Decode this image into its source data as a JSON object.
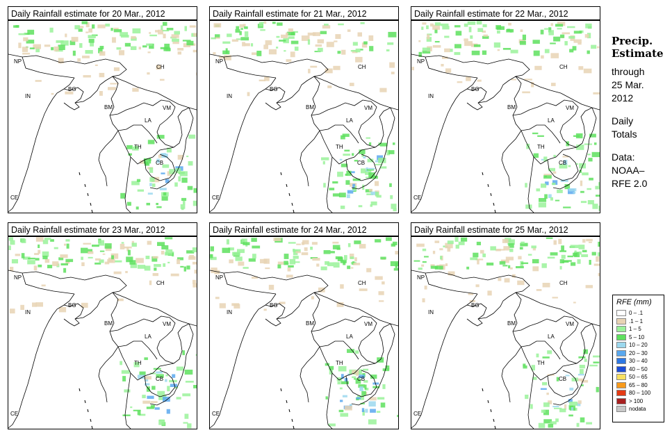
{
  "panels": [
    {
      "title": "Daily Rainfall estimate for  20 Mar., 2012",
      "seed": 1
    },
    {
      "title": "Daily Rainfall estimate for  21 Mar., 2012",
      "seed": 2
    },
    {
      "title": "Daily Rainfall estimate for  22 Mar., 2012",
      "seed": 3
    },
    {
      "title": "Daily Rainfall estimate for  23 Mar., 2012",
      "seed": 4
    },
    {
      "title": "Daily Rainfall estimate for  24 Mar., 2012",
      "seed": 5
    },
    {
      "title": "Daily Rainfall estimate for  25 Mar., 2012",
      "seed": 6
    }
  ],
  "country_labels": [
    "NP",
    "CH",
    "IN",
    "BG",
    "BM",
    "VM",
    "LA",
    "TH",
    "CB",
    "CE"
  ],
  "side": {
    "heading_line1": "Precip.",
    "heading_line2": "Estimate",
    "through": "through",
    "date_line1": "25 Mar.",
    "date_line2": "2012",
    "daily1": "Daily",
    "daily2": "Totals",
    "data1": "Data:",
    "data2": "NOAA–",
    "data3": "RFE 2.0"
  },
  "legend": {
    "title": "RFE (mm)",
    "items": [
      {
        "label": "0 – .1",
        "color": "#ffffff"
      },
      {
        "label": ".1 – 1",
        "color": "#e8d3b4"
      },
      {
        "label": "1 – 5",
        "color": "#9af29a"
      },
      {
        "label": "5 – 10",
        "color": "#5ee05e"
      },
      {
        "label": "10 – 20",
        "color": "#9cd8ee"
      },
      {
        "label": "20 – 30",
        "color": "#5aa8ee"
      },
      {
        "label": "30 – 40",
        "color": "#2e78e4"
      },
      {
        "label": "40 – 50",
        "color": "#1c4ed8"
      },
      {
        "label": "50 – 65",
        "color": "#f8e060"
      },
      {
        "label": "65 – 80",
        "color": "#f89a1c"
      },
      {
        "label": "80 – 100",
        "color": "#e43a14"
      },
      {
        "label": "> 100",
        "color": "#a82020"
      },
      {
        "label": "nodata",
        "color": "#c8c8c8"
      }
    ]
  }
}
